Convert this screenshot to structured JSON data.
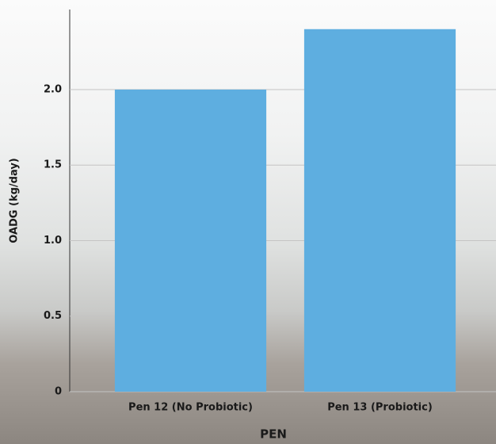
{
  "chart_data": {
    "type": "bar",
    "categories": [
      "Pen 12 (No Probiotic)",
      "Pen 13 (Probiotic)"
    ],
    "values": [
      2.0,
      2.4
    ],
    "color": "#5eaee0",
    "x_label": "PEN",
    "y_label": "OADG (kg/day)",
    "ylim": [
      0,
      2.53
    ],
    "yticks": [
      0,
      0.5,
      {
        "value": 1,
        "label": "1.0"
      },
      1.5,
      {
        "value": 2,
        "label": "2.0"
      }
    ],
    "grid": true
  }
}
